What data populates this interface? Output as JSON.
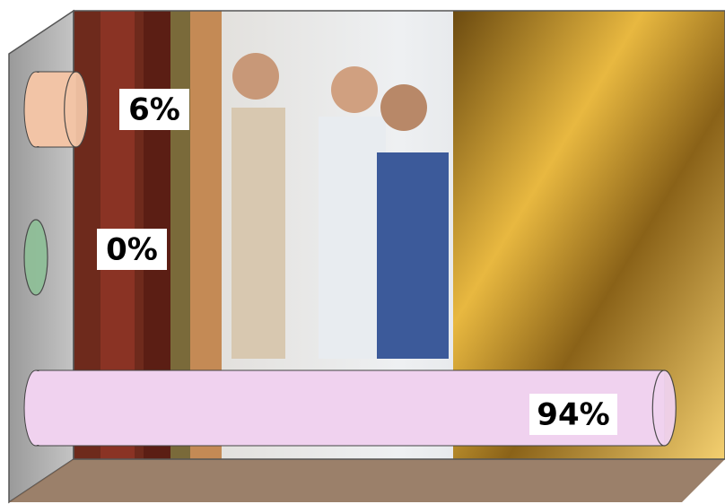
{
  "chart_data": {
    "type": "bar",
    "orientation": "horizontal",
    "categories": [
      null,
      null,
      null
    ],
    "values": [
      6,
      0,
      94
    ],
    "value_labels": [
      "6%",
      "0%",
      "94%"
    ],
    "colors": [
      "#f2c4a6",
      "#8fbf98",
      "#f0d2ef"
    ]
  }
}
